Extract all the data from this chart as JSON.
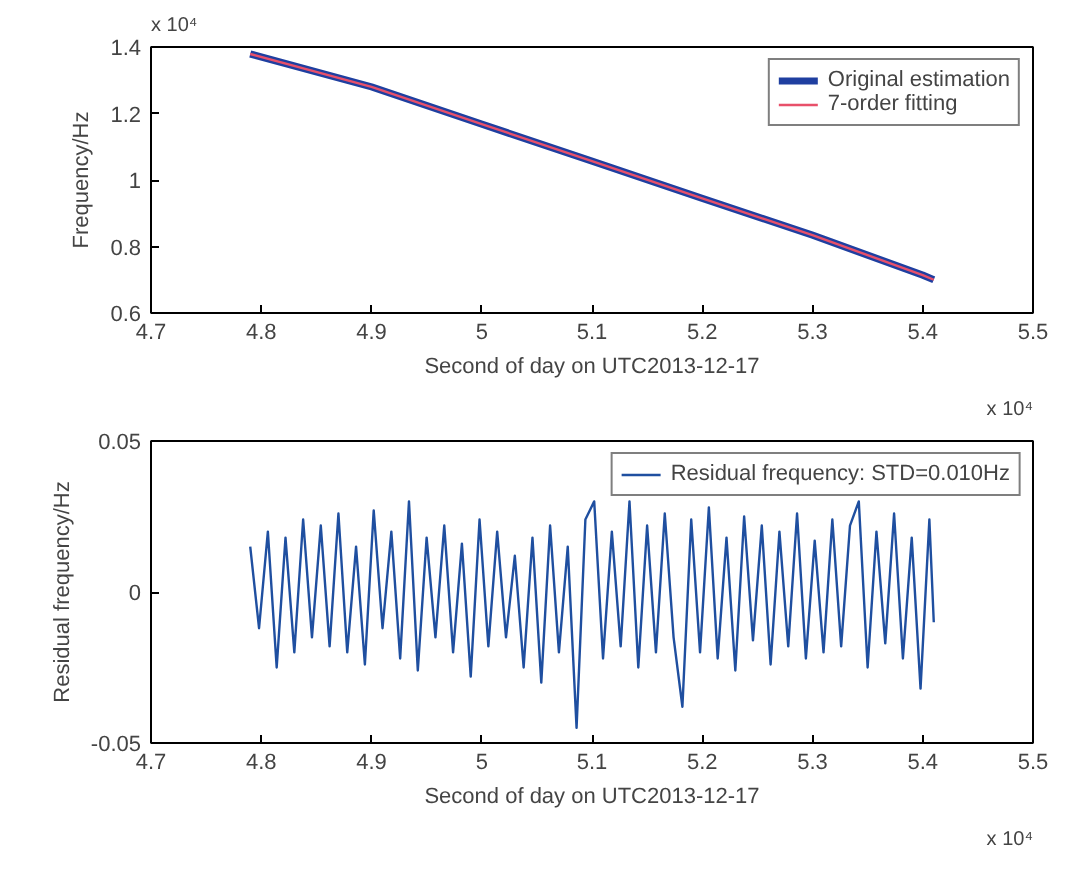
{
  "chart_data": [
    {
      "type": "line",
      "xlabel": "Second of day on UTC2013-12-17",
      "ylabel": "Frequency/Hz",
      "annotations": [
        "x 10⁴",
        "x 10⁴"
      ],
      "xlim": [
        4.7,
        5.5
      ],
      "xticks": [
        4.7,
        4.8,
        4.9,
        5,
        5.1,
        5.2,
        5.3,
        5.4,
        5.5
      ],
      "ylim": [
        0.6,
        1.4
      ],
      "yticks": [
        0.6,
        0.8,
        1,
        1.2,
        1.4
      ],
      "x": [
        4.79,
        4.9,
        5.0,
        5.1,
        5.2,
        5.3,
        5.4,
        5.41
      ],
      "series": [
        {
          "name": "Original estimation",
          "color": "#1f3fa0",
          "values": [
            1.379,
            1.28,
            1.168,
            1.057,
            0.945,
            0.834,
            0.714,
            0.7
          ]
        },
        {
          "name": "7-order fitting",
          "color": "#e8506a",
          "values": [
            1.379,
            1.28,
            1.168,
            1.057,
            0.945,
            0.834,
            0.714,
            0.7
          ]
        }
      ],
      "legend": "top right",
      "grid": false,
      "marker": "none",
      "line_style": "solid"
    },
    {
      "type": "line",
      "xlabel": "Second of day on UTC2013-12-17",
      "ylabel": "Residual frequency/Hz",
      "annotations": [
        "x 10⁴"
      ],
      "xlim": [
        4.7,
        5.5
      ],
      "xticks": [
        4.7,
        4.8,
        4.9,
        5,
        5.1,
        5.2,
        5.3,
        5.4,
        5.5
      ],
      "ylim": [
        -0.05,
        0.05
      ],
      "yticks": [
        -0.05,
        0,
        0.05
      ],
      "x": [
        4.79,
        4.798,
        4.806,
        4.814,
        4.822,
        4.83,
        4.838,
        4.846,
        4.854,
        4.862,
        4.87,
        4.878,
        4.886,
        4.894,
        4.902,
        4.91,
        4.918,
        4.926,
        4.934,
        4.942,
        4.95,
        4.958,
        4.966,
        4.974,
        4.982,
        4.99,
        4.998,
        5.006,
        5.014,
        5.022,
        5.03,
        5.038,
        5.046,
        5.054,
        5.062,
        5.07,
        5.078,
        5.086,
        5.094,
        5.102,
        5.11,
        5.118,
        5.126,
        5.134,
        5.142,
        5.15,
        5.158,
        5.166,
        5.174,
        5.182,
        5.19,
        5.198,
        5.206,
        5.214,
        5.222,
        5.23,
        5.238,
        5.246,
        5.254,
        5.262,
        5.27,
        5.278,
        5.286,
        5.294,
        5.302,
        5.31,
        5.318,
        5.326,
        5.334,
        5.342,
        5.35,
        5.358,
        5.366,
        5.374,
        5.382,
        5.39,
        5.398,
        5.406,
        5.41
      ],
      "series": [
        {
          "name": "Residual frequency: STD=0.010Hz",
          "color": "#1f4fa0",
          "values": [
            0.015,
            -0.012,
            0.02,
            -0.025,
            0.018,
            -0.02,
            0.024,
            -0.015,
            0.022,
            -0.018,
            0.026,
            -0.02,
            0.015,
            -0.024,
            0.027,
            -0.012,
            0.02,
            -0.022,
            0.03,
            -0.026,
            0.018,
            -0.015,
            0.022,
            -0.02,
            0.016,
            -0.028,
            0.024,
            -0.018,
            0.02,
            -0.015,
            0.012,
            -0.025,
            0.018,
            -0.03,
            0.022,
            -0.02,
            0.015,
            -0.045,
            0.024,
            0.03,
            -0.022,
            0.02,
            -0.018,
            0.03,
            -0.025,
            0.022,
            -0.02,
            0.026,
            -0.015,
            -0.038,
            0.024,
            -0.02,
            0.028,
            -0.022,
            0.018,
            -0.026,
            0.025,
            -0.016,
            0.022,
            -0.024,
            0.02,
            -0.018,
            0.026,
            -0.022,
            0.017,
            -0.02,
            0.024,
            -0.018,
            0.022,
            0.03,
            -0.025,
            0.02,
            -0.017,
            0.026,
            -0.022,
            0.018,
            -0.032,
            0.024,
            -0.01
          ]
        }
      ],
      "legend": "top right",
      "grid": false,
      "marker": "none",
      "line_style": "solid"
    }
  ]
}
